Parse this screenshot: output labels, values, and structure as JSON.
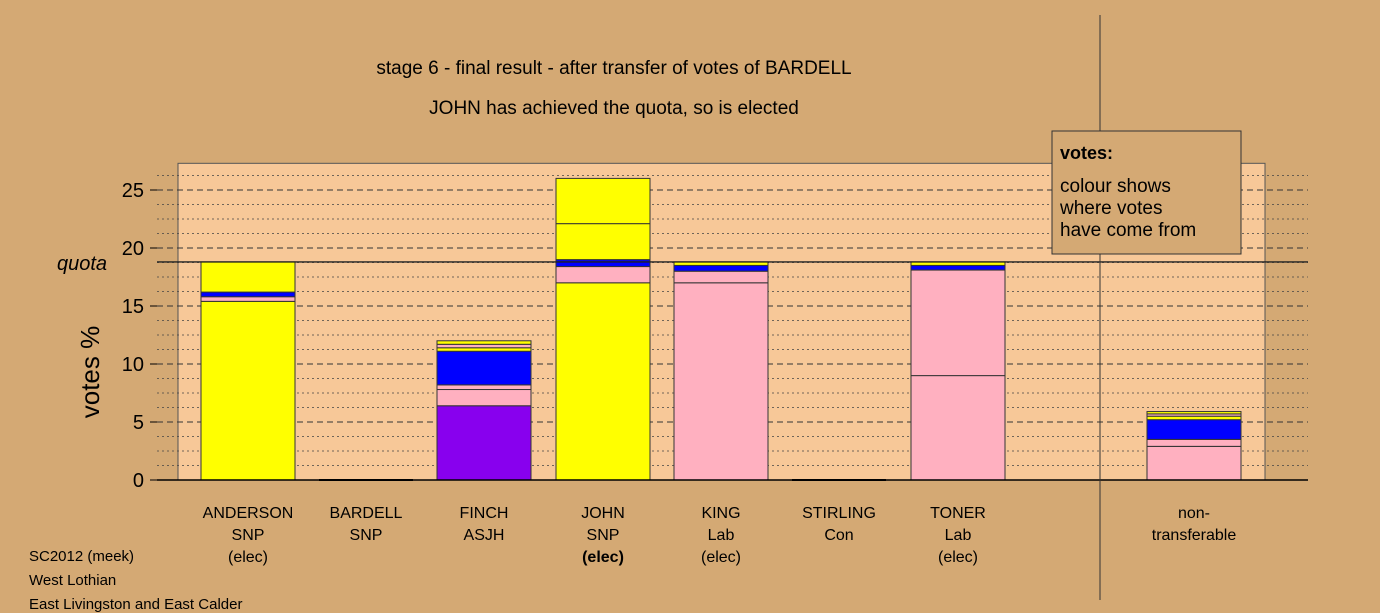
{
  "chart_data": {
    "type": "bar",
    "title": "stage 6 - final result - after transfer of votes of BARDELL",
    "subtitle": "JOHN has achieved the quota, so is elected",
    "ylabel": "votes %",
    "ylim": [
      0,
      27.3
    ],
    "yticks": [
      "0",
      "5",
      "10",
      "15",
      "20",
      "25"
    ],
    "quota_label": "quota",
    "quota": 18.8,
    "grid": true,
    "legend": {
      "title": "votes:",
      "lines": [
        "colour shows",
        "where votes",
        "have come from"
      ]
    },
    "colors": {
      "snp": "#ffff00",
      "lab": "#ffb0c0",
      "con": "#0000ff",
      "asjh": "#8800ee",
      "panel": "#f7c898",
      "background": "#d4a974"
    },
    "candidates": [
      {
        "name": "ANDERSON",
        "party": "SNP",
        "status": "(elec)",
        "segments": [
          {
            "value": 15.4,
            "color": "#ffff00"
          },
          {
            "value": 0.4,
            "color": "#ffb0c0"
          },
          {
            "value": 0.4,
            "color": "#0000ff"
          },
          {
            "value": 2.6,
            "color": "#ffff00"
          }
        ]
      },
      {
        "name": "BARDELL",
        "party": "SNP",
        "status": "",
        "segments": []
      },
      {
        "name": "FINCH",
        "party": "ASJH",
        "status": "",
        "segments": [
          {
            "value": 6.4,
            "color": "#8800ee"
          },
          {
            "value": 1.4,
            "color": "#ffb0c0"
          },
          {
            "value": 0.4,
            "color": "#ffb0c0"
          },
          {
            "value": 2.9,
            "color": "#0000ff"
          },
          {
            "value": 0.3,
            "color": "#ffff00"
          },
          {
            "value": 0.3,
            "color": "#ffb0c0"
          },
          {
            "value": 0.3,
            "color": "#ffff00"
          }
        ]
      },
      {
        "name": "JOHN",
        "party": "SNP",
        "status": "(elec)",
        "segments": [
          {
            "value": 17.0,
            "color": "#ffff00"
          },
          {
            "value": 1.4,
            "color": "#ffb0c0"
          },
          {
            "value": 0.6,
            "color": "#0000ff"
          },
          {
            "value": 3.1,
            "color": "#ffff00"
          },
          {
            "value": 3.9,
            "color": "#ffff00"
          }
        ]
      },
      {
        "name": "KING",
        "party": "Lab",
        "status": "(elec)",
        "segments": [
          {
            "value": 17.0,
            "color": "#ffb0c0"
          },
          {
            "value": 1.0,
            "color": "#ffb0c0"
          },
          {
            "value": 0.5,
            "color": "#0000ff"
          },
          {
            "value": 0.3,
            "color": "#ffff00"
          }
        ]
      },
      {
        "name": "STIRLING",
        "party": "Con",
        "status": "",
        "segments": []
      },
      {
        "name": "TONER",
        "party": "Lab",
        "status": "(elec)",
        "segments": [
          {
            "value": 9.0,
            "color": "#ffb0c0"
          },
          {
            "value": 9.1,
            "color": "#ffb0c0"
          },
          {
            "value": 0.4,
            "color": "#0000ff"
          },
          {
            "value": 0.3,
            "color": "#ffff00"
          }
        ]
      }
    ],
    "nontransferable": {
      "line1": "non-",
      "line2": "transferable",
      "segments": [
        {
          "value": 2.9,
          "color": "#ffb0c0"
        },
        {
          "value": 0.6,
          "color": "#ffb0c0"
        },
        {
          "value": 1.7,
          "color": "#0000ff"
        },
        {
          "value": 0.3,
          "color": "#ffff00"
        },
        {
          "value": 0.2,
          "color": "#ffb0c0"
        },
        {
          "value": 0.2,
          "color": "#ffff00"
        }
      ]
    }
  },
  "footer": {
    "line1": "SC2012 (meek)",
    "line2": "West Lothian",
    "line3": "East Livingston and East Calder"
  }
}
